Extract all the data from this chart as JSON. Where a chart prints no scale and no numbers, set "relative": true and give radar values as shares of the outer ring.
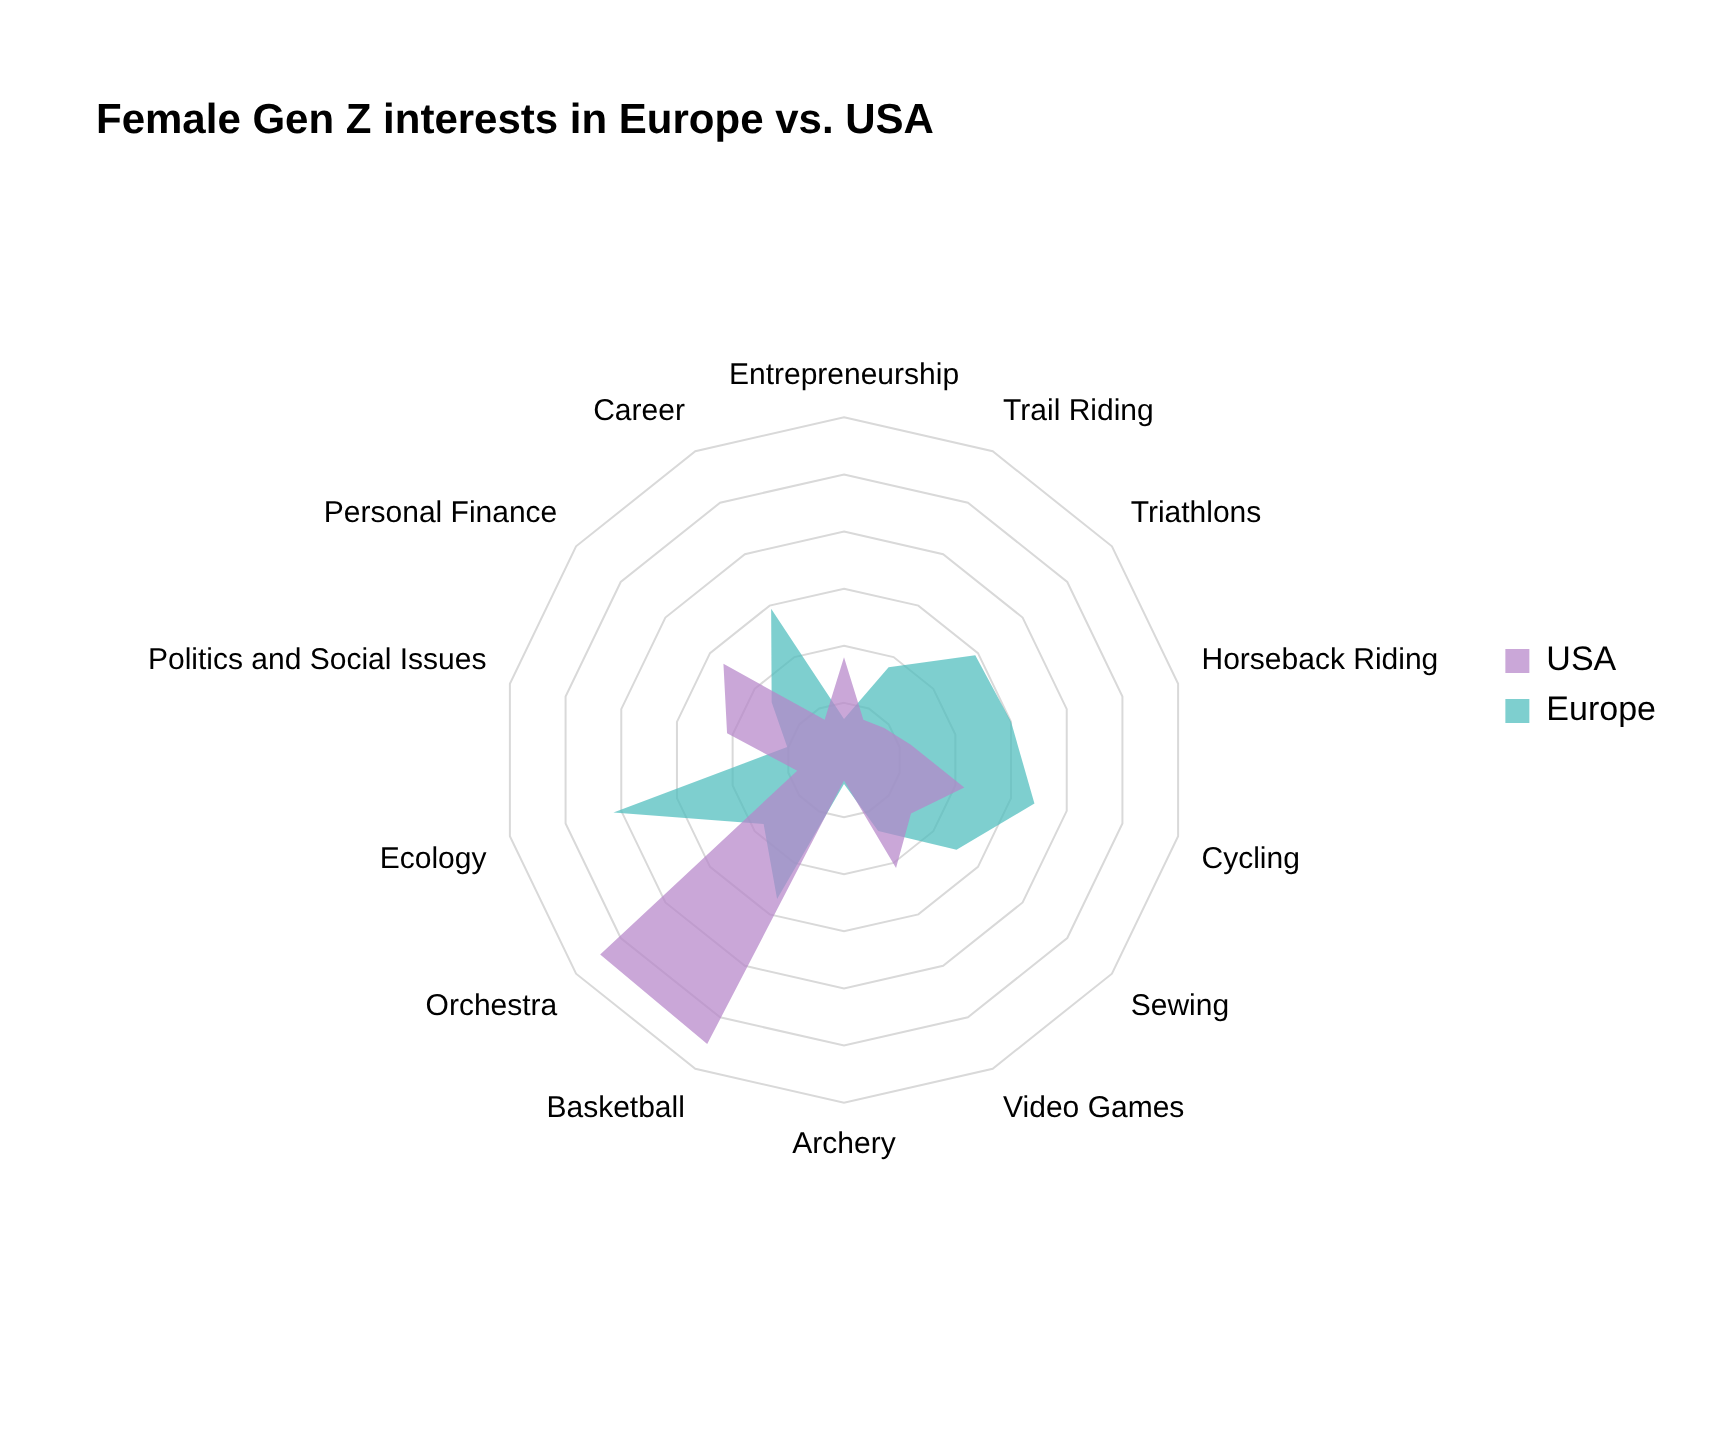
{
  "chart_data": {
    "type": "radar",
    "title": "Female Gen Z interests in Europe vs. USA",
    "categories": [
      "Entrepreneurship",
      "Trail Riding",
      "Triathlons",
      "Horseback Riding",
      "Cycling",
      "Sewing",
      "Video Games",
      "Archery",
      "Basketball",
      "Orchestra",
      "Ecology",
      "Politics and Social Issues",
      "Personal Finance",
      "Career"
    ],
    "relative": true,
    "grid": true,
    "legend": "right",
    "marker": "none",
    "series": [
      {
        "name": "USA",
        "color": "#b585c9",
        "values": [
          0.3,
          0.13,
          0.15,
          0.2,
          0.36,
          0.25,
          0.35,
          0.06,
          0.92,
          0.91,
          0.14,
          0.35,
          0.45,
          0.13
        ]
      },
      {
        "name": "Europe",
        "color": "#4cbdbd",
        "values": [
          0.12,
          0.3,
          0.49,
          0.5,
          0.57,
          0.42,
          0.23,
          0.07,
          0.45,
          0.3,
          0.69,
          0.17,
          0.27,
          0.49
        ]
      }
    ]
  }
}
